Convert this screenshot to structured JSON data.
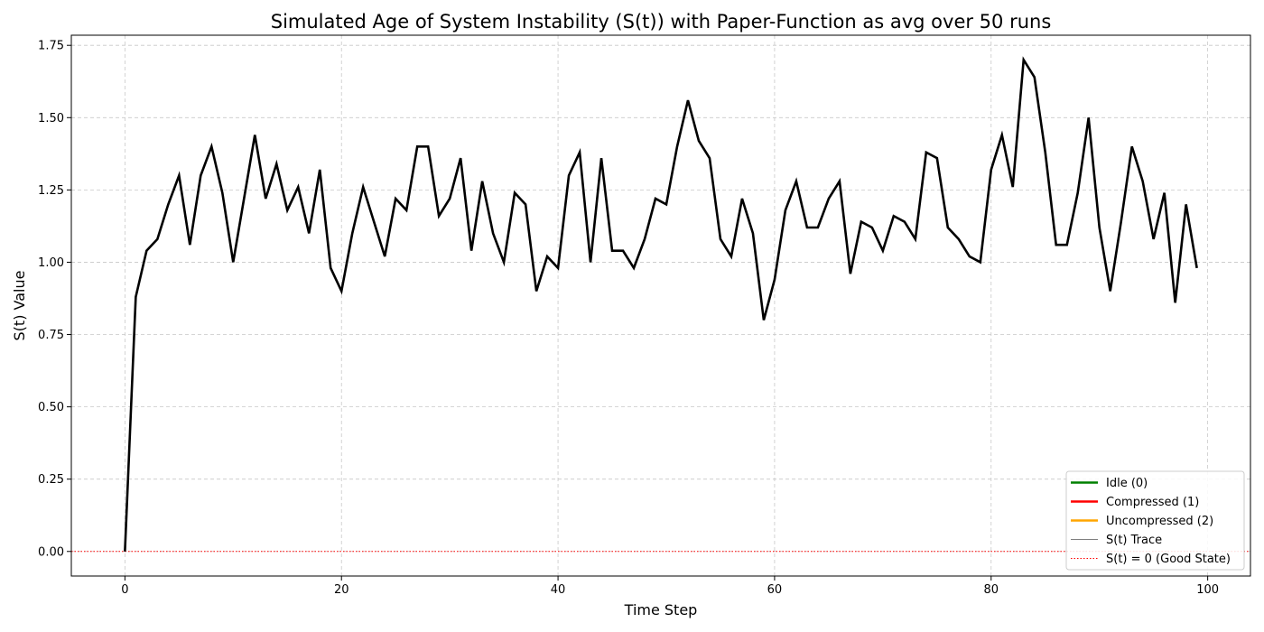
{
  "chart_data": {
    "type": "line",
    "title": "Simulated Age of System Instability (S(t)) with Paper-Function as avg over 50 runs",
    "xlabel": "Time Step",
    "ylabel": "S(t) Value",
    "xlim": [
      -4.95,
      103.95
    ],
    "ylim": [
      -0.085,
      1.785
    ],
    "xticks": [
      0,
      20,
      40,
      60,
      80,
      100
    ],
    "xtick_labels": [
      "0",
      "20",
      "40",
      "60",
      "80",
      "100"
    ],
    "yticks": [
      0.0,
      0.25,
      0.5,
      0.75,
      1.0,
      1.25,
      1.5,
      1.75
    ],
    "ytick_labels": [
      "0.00",
      "0.25",
      "0.50",
      "0.75",
      "1.00",
      "1.25",
      "1.50",
      "1.75"
    ],
    "grid": true,
    "legend_position": "bottom-right",
    "series": [
      {
        "name": "S(t) Trace",
        "color": "#000000",
        "x": [
          0,
          1,
          2,
          3,
          4,
          5,
          6,
          7,
          8,
          9,
          10,
          11,
          12,
          13,
          14,
          15,
          16,
          17,
          18,
          19,
          20,
          21,
          22,
          23,
          24,
          25,
          26,
          27,
          28,
          29,
          30,
          31,
          32,
          33,
          34,
          35,
          36,
          37,
          38,
          39,
          40,
          41,
          42,
          43,
          44,
          45,
          46,
          47,
          48,
          49,
          50,
          51,
          52,
          53,
          54,
          55,
          56,
          57,
          58,
          59,
          60,
          61,
          62,
          63,
          64,
          65,
          66,
          67,
          68,
          69,
          70,
          71,
          72,
          73,
          74,
          75,
          76,
          77,
          78,
          79,
          80,
          81,
          82,
          83,
          84,
          85,
          86,
          87,
          88,
          89,
          90,
          91,
          92,
          93,
          94,
          95,
          96,
          97,
          98,
          99
        ],
        "y": [
          0.0,
          0.88,
          1.04,
          1.08,
          1.2,
          1.3,
          1.06,
          1.3,
          1.4,
          1.24,
          1.0,
          1.22,
          1.44,
          1.22,
          1.34,
          1.18,
          1.26,
          1.1,
          1.32,
          0.98,
          0.9,
          1.1,
          1.26,
          1.14,
          1.02,
          1.22,
          1.18,
          1.4,
          1.4,
          1.16,
          1.22,
          1.36,
          1.04,
          1.28,
          1.1,
          1.0,
          1.24,
          1.2,
          0.9,
          1.02,
          0.98,
          1.3,
          1.38,
          1.0,
          1.36,
          1.04,
          1.04,
          0.98,
          1.08,
          1.22,
          1.2,
          1.4,
          1.56,
          1.42,
          1.36,
          1.08,
          1.02,
          1.22,
          1.1,
          0.8,
          0.94,
          1.18,
          1.28,
          1.12,
          1.12,
          1.22,
          1.28,
          0.96,
          1.14,
          1.12,
          1.04,
          1.16,
          1.14,
          1.08,
          1.38,
          1.36,
          1.12,
          1.08,
          1.02,
          1.0,
          1.32,
          1.44,
          1.26,
          1.7,
          1.64,
          1.38,
          1.06,
          1.06,
          1.24,
          1.5,
          1.12,
          0.9,
          1.14,
          1.4,
          1.28,
          1.08,
          1.24,
          0.86,
          1.2,
          0.98
        ]
      }
    ],
    "reference_line": {
      "y": 0.0,
      "color": "#ff0000",
      "label": "S(t) = 0 (Good State)"
    },
    "legend": [
      {
        "label": "Idle (0)",
        "color": "#008000",
        "style": "solid-thick"
      },
      {
        "label": "Compressed (1)",
        "color": "#ff0000",
        "style": "solid-thick"
      },
      {
        "label": "Uncompressed (2)",
        "color": "#ffa500",
        "style": "solid-thick"
      },
      {
        "label": "S(t) Trace",
        "color": "#555555",
        "style": "solid-thin"
      },
      {
        "label": "S(t) = 0 (Good State)",
        "color": "#ff0000",
        "style": "dotted"
      }
    ]
  }
}
